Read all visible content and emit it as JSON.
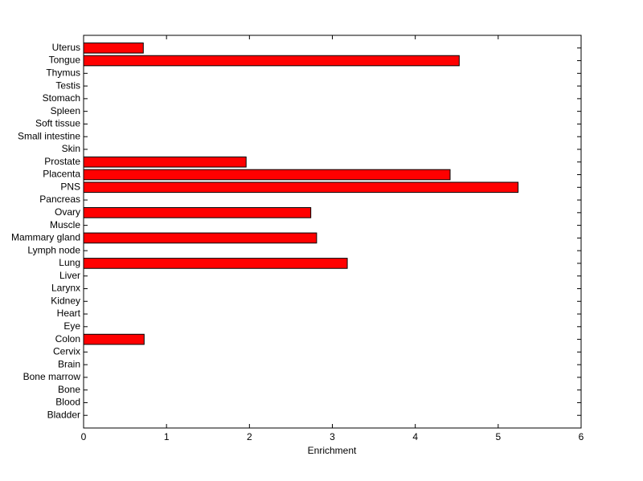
{
  "chart_data": {
    "type": "barh",
    "xlabel": "Enrichment",
    "categories": [
      "Bladder",
      "Blood",
      "Bone",
      "Bone marrow",
      "Brain",
      "Cervix",
      "Colon",
      "Eye",
      "Heart",
      "Kidney",
      "Larynx",
      "Liver",
      "Lung",
      "Lymph node",
      "Mammary gland",
      "Muscle",
      "Ovary",
      "Pancreas",
      "PNS",
      "Placenta",
      "Prostate",
      "Skin",
      "Small intestine",
      "Soft tissue",
      "Spleen",
      "Stomach",
      "Testis",
      "Thymus",
      "Tongue",
      "Uterus"
    ],
    "values": [
      0,
      0,
      0,
      0,
      0,
      0,
      0.73,
      0,
      0,
      0,
      0,
      0,
      3.18,
      0,
      2.81,
      0,
      2.74,
      0,
      5.24,
      4.42,
      1.96,
      0,
      0,
      0,
      0,
      0,
      0,
      0,
      4.53,
      0.72
    ],
    "color": "#ff0000",
    "xlim": [
      0,
      6
    ],
    "xticks": [
      0,
      1,
      2,
      3,
      4,
      5,
      6
    ]
  }
}
